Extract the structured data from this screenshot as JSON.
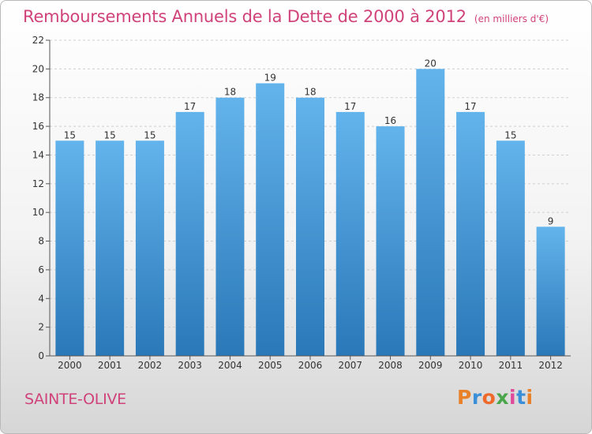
{
  "header": {
    "title": "Remboursements Annuels de la Dette de 2000 à 2012",
    "unit": "(en milliers d'€)"
  },
  "footer": {
    "town": "SAINTE-OLIVE",
    "logo_text": "Proxiti",
    "logo_colors": [
      "#e8812a",
      "#3a8fd8",
      "#ef6a2a",
      "#4aa64a",
      "#e04a9a",
      "#3a8fd8",
      "#e8812a"
    ]
  },
  "colors": {
    "bar_top": "#63b3ec",
    "bar_bottom": "#2a78b8",
    "axis": "#555555",
    "grid": "#cfcfcf"
  },
  "chart_data": {
    "type": "bar",
    "title": "Remboursements Annuels de la Dette de 2000 à 2012",
    "categories": [
      "2000",
      "2001",
      "2002",
      "2003",
      "2004",
      "2005",
      "2006",
      "2007",
      "2008",
      "2009",
      "2010",
      "2011",
      "2012"
    ],
    "values": [
      15,
      15,
      15,
      17,
      18,
      19,
      18,
      17,
      16,
      20,
      17,
      15,
      9
    ],
    "ylim": [
      0,
      22
    ],
    "yticks": [
      0,
      2,
      4,
      6,
      8,
      10,
      12,
      14,
      16,
      18,
      20,
      22
    ],
    "grid": true,
    "xlabel": "",
    "ylabel": ""
  }
}
